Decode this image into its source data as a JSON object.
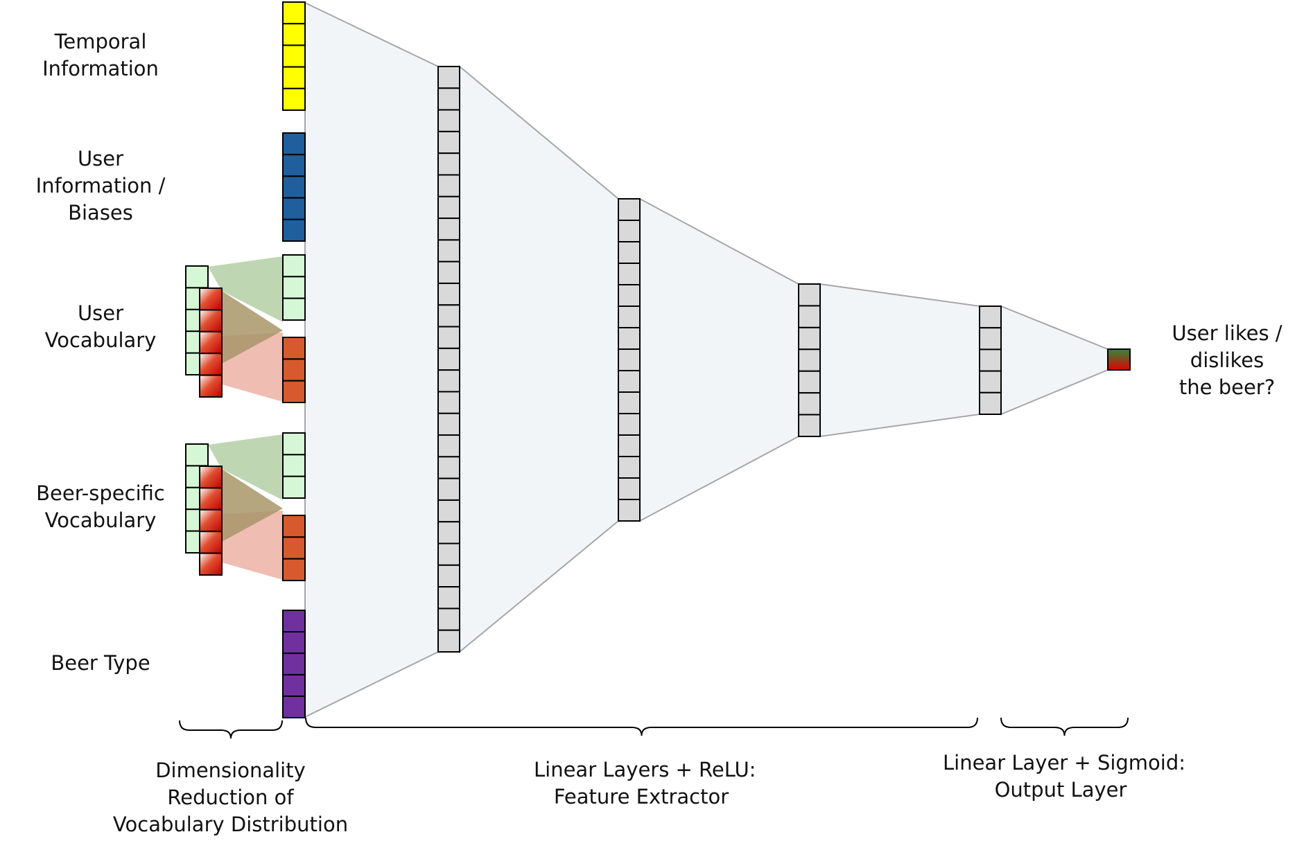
{
  "labels": {
    "temporal": [
      "Temporal",
      "Information"
    ],
    "user_info": [
      "User",
      "Information /",
      "Biases"
    ],
    "user_vocab": [
      "User",
      "Vocabulary"
    ],
    "beer_vocab": [
      "Beer-specific",
      "Vocabulary"
    ],
    "beer_type": [
      "Beer Type"
    ],
    "output": [
      "User likes /",
      "dislikes",
      "the beer?"
    ],
    "dim_reduction": [
      "Dimensionality",
      "Reduction of",
      "Vocabulary Distribution"
    ],
    "feature_extractor": [
      "Linear Layers + ReLU:",
      "Feature Extractor"
    ],
    "output_layer": [
      "Linear Layer + Sigmoid:",
      "Output Layer"
    ]
  },
  "colors": {
    "temporal": "#ffff00",
    "user_info": "#1f5f9e",
    "vocab_green": "#d6f7d6",
    "vocab_red": "#d65a2e",
    "beer_type": "#7030a0",
    "hidden": "#d9d9d9",
    "funnel": "#f2f5f8",
    "output_top": "#2e8b3a",
    "output_bottom": "#e00000"
  },
  "layers": {
    "input_units": {
      "temporal": 5,
      "user_info": 5,
      "user_vocab_green": 3,
      "user_vocab_red": 3,
      "beer_vocab_green": 3,
      "beer_vocab_red": 3,
      "beer_type": 5
    },
    "hidden_units": [
      27,
      15,
      7,
      5
    ],
    "output_units": 1
  }
}
